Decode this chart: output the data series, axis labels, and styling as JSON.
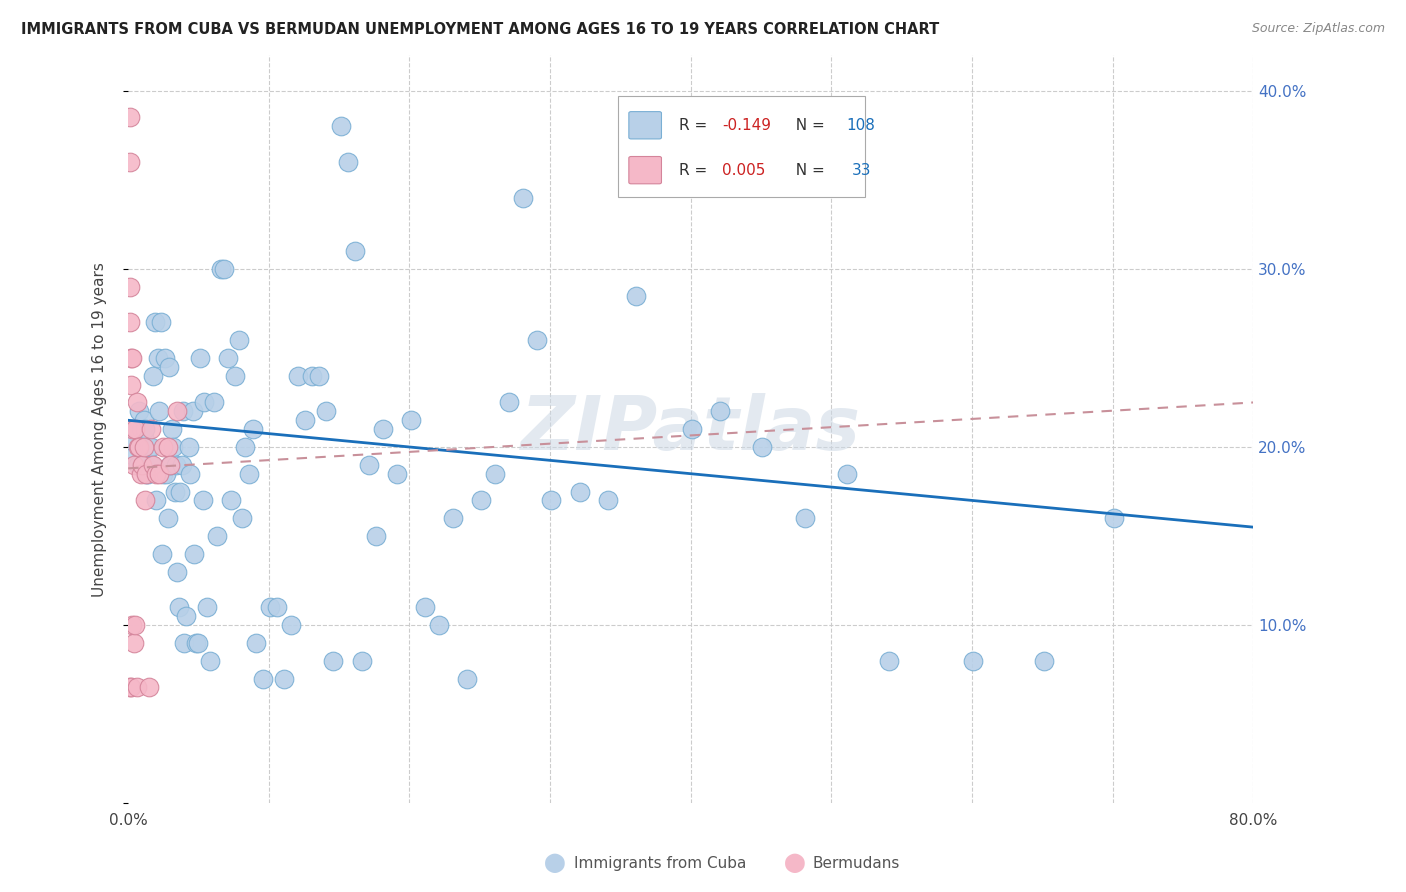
{
  "title": "IMMIGRANTS FROM CUBA VS BERMUDAN UNEMPLOYMENT AMONG AGES 16 TO 19 YEARS CORRELATION CHART",
  "source": "Source: ZipAtlas.com",
  "ylabel": "Unemployment Among Ages 16 to 19 years",
  "xlim": [
    0.0,
    0.8
  ],
  "ylim": [
    0.0,
    0.42
  ],
  "xticks": [
    0.0,
    0.1,
    0.2,
    0.3,
    0.4,
    0.5,
    0.6,
    0.7,
    0.8
  ],
  "yticks": [
    0.0,
    0.1,
    0.2,
    0.3,
    0.4
  ],
  "yticklabels": [
    "",
    "10.0%",
    "20.0%",
    "30.0%",
    "40.0%"
  ],
  "legend1_label": "Immigrants from Cuba",
  "legend2_label": "Bermudans",
  "R1": "-0.149",
  "N1": "108",
  "R2": "0.005",
  "N2": "33",
  "color_blue": "#b8d0e8",
  "color_blue_edge": "#7aafd4",
  "color_blue_line": "#1a6fba",
  "color_pink": "#f5b8c8",
  "color_pink_edge": "#d4849a",
  "color_pink_line": "#c8909a",
  "watermark": "ZIPatlas",
  "blue_scatter_x": [
    0.002,
    0.004,
    0.006,
    0.007,
    0.008,
    0.009,
    0.009,
    0.01,
    0.011,
    0.011,
    0.012,
    0.012,
    0.013,
    0.014,
    0.015,
    0.016,
    0.017,
    0.018,
    0.019,
    0.02,
    0.021,
    0.022,
    0.023,
    0.024,
    0.025,
    0.026,
    0.027,
    0.028,
    0.029,
    0.03,
    0.031,
    0.032,
    0.033,
    0.034,
    0.035,
    0.036,
    0.037,
    0.038,
    0.039,
    0.04,
    0.041,
    0.043,
    0.044,
    0.046,
    0.047,
    0.048,
    0.05,
    0.051,
    0.053,
    0.054,
    0.056,
    0.058,
    0.061,
    0.063,
    0.066,
    0.068,
    0.071,
    0.073,
    0.076,
    0.079,
    0.081,
    0.083,
    0.086,
    0.089,
    0.091,
    0.096,
    0.101,
    0.106,
    0.111,
    0.116,
    0.121,
    0.126,
    0.131,
    0.136,
    0.141,
    0.146,
    0.151,
    0.156,
    0.161,
    0.166,
    0.171,
    0.176,
    0.181,
    0.191,
    0.201,
    0.211,
    0.221,
    0.231,
    0.241,
    0.251,
    0.261,
    0.271,
    0.281,
    0.291,
    0.301,
    0.321,
    0.341,
    0.361,
    0.381,
    0.401,
    0.421,
    0.451,
    0.481,
    0.511,
    0.541,
    0.601,
    0.651,
    0.701
  ],
  "blue_scatter_y": [
    0.205,
    0.195,
    0.21,
    0.19,
    0.22,
    0.21,
    0.2,
    0.19,
    0.205,
    0.215,
    0.21,
    0.19,
    0.185,
    0.185,
    0.2,
    0.2,
    0.19,
    0.24,
    0.27,
    0.17,
    0.25,
    0.22,
    0.27,
    0.14,
    0.185,
    0.25,
    0.185,
    0.16,
    0.245,
    0.19,
    0.21,
    0.2,
    0.175,
    0.19,
    0.13,
    0.11,
    0.175,
    0.19,
    0.22,
    0.09,
    0.105,
    0.2,
    0.185,
    0.22,
    0.14,
    0.09,
    0.09,
    0.25,
    0.17,
    0.225,
    0.11,
    0.08,
    0.225,
    0.15,
    0.3,
    0.3,
    0.25,
    0.17,
    0.24,
    0.26,
    0.16,
    0.2,
    0.185,
    0.21,
    0.09,
    0.07,
    0.11,
    0.11,
    0.07,
    0.1,
    0.24,
    0.215,
    0.24,
    0.24,
    0.22,
    0.08,
    0.38,
    0.36,
    0.31,
    0.08,
    0.19,
    0.15,
    0.21,
    0.185,
    0.215,
    0.11,
    0.1,
    0.16,
    0.07,
    0.17,
    0.185,
    0.225,
    0.34,
    0.26,
    0.17,
    0.175,
    0.17,
    0.285,
    0.35,
    0.21,
    0.22,
    0.2,
    0.16,
    0.185,
    0.08,
    0.08,
    0.08,
    0.16
  ],
  "pink_scatter_x": [
    0.001,
    0.001,
    0.001,
    0.001,
    0.001,
    0.002,
    0.002,
    0.002,
    0.003,
    0.003,
    0.003,
    0.004,
    0.004,
    0.005,
    0.005,
    0.006,
    0.006,
    0.007,
    0.008,
    0.009,
    0.01,
    0.011,
    0.012,
    0.013,
    0.015,
    0.016,
    0.018,
    0.02,
    0.022,
    0.025,
    0.028,
    0.03,
    0.035
  ],
  "pink_scatter_y": [
    0.385,
    0.36,
    0.29,
    0.27,
    0.065,
    0.25,
    0.235,
    0.065,
    0.25,
    0.21,
    0.1,
    0.19,
    0.09,
    0.21,
    0.1,
    0.225,
    0.065,
    0.2,
    0.2,
    0.185,
    0.19,
    0.2,
    0.17,
    0.185,
    0.065,
    0.21,
    0.19,
    0.185,
    0.185,
    0.2,
    0.2,
    0.19,
    0.22
  ],
  "blue_trend_x0": 0.0,
  "blue_trend_x1": 0.8,
  "blue_trend_y0": 0.215,
  "blue_trend_y1": 0.155,
  "pink_trend_x0": 0.0,
  "pink_trend_x1": 0.8,
  "pink_trend_y0": 0.188,
  "pink_trend_y1": 0.225
}
